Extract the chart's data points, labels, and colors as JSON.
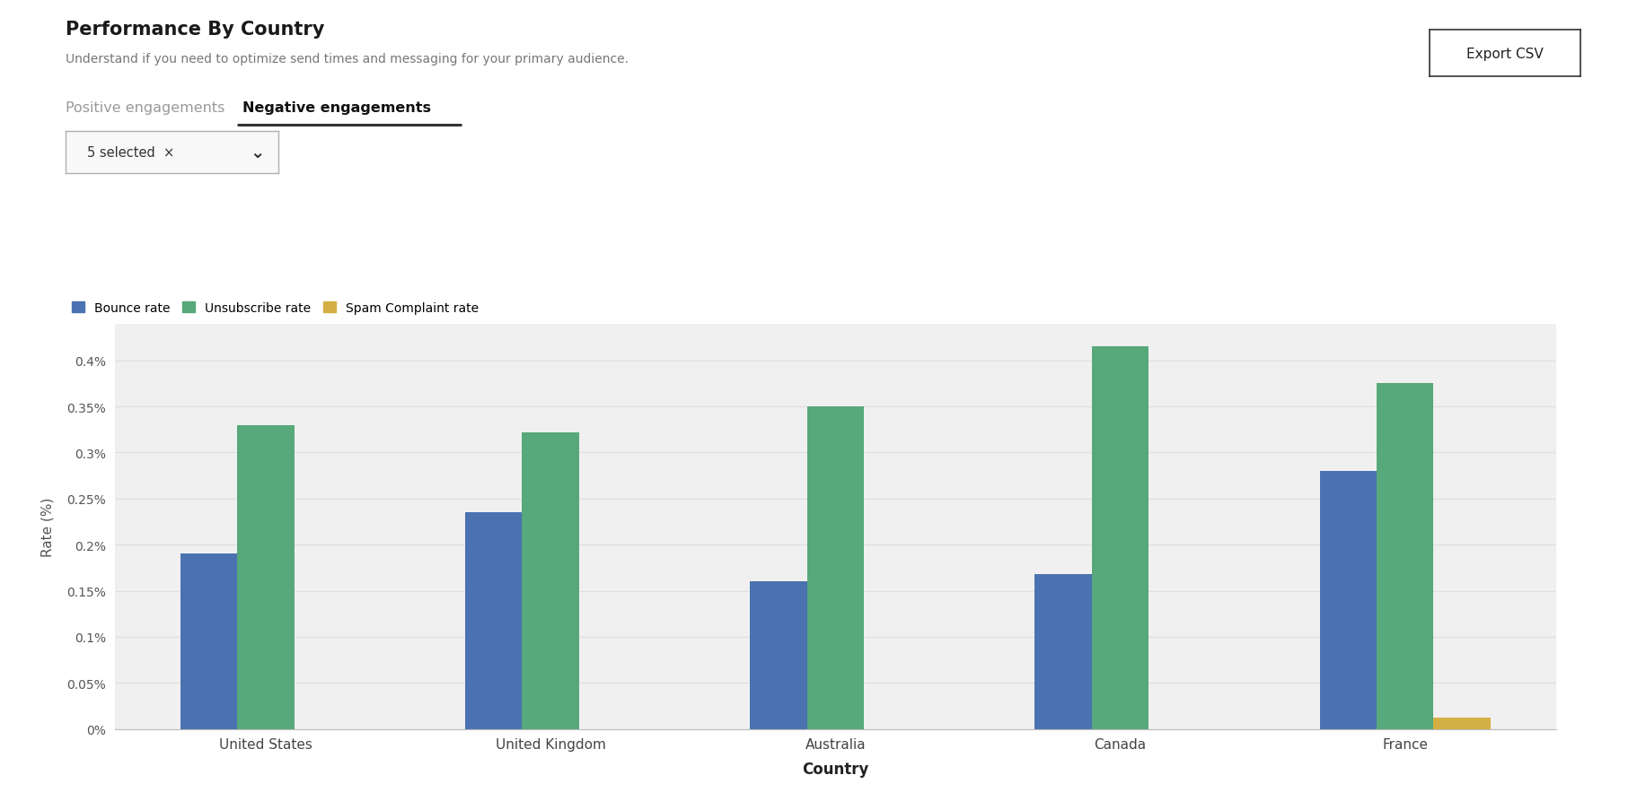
{
  "title": "Performance By Country",
  "subtitle": "Understand if you need to optimize send times and messaging for your primary audience.",
  "tab_inactive": "Positive engagements",
  "tab_active": "Negative engagements",
  "dropdown_label": "5 selected  ×",
  "xlabel": "Country",
  "ylabel": "Rate (%)",
  "categories": [
    "United States",
    "United Kingdom",
    "Australia",
    "Canada",
    "France"
  ],
  "series": [
    {
      "name": "Bounce rate",
      "color": "#4a72b0",
      "values": [
        0.19,
        0.235,
        0.16,
        0.168,
        0.28
      ]
    },
    {
      "name": "Unsubscribe rate",
      "color": "#57a87a",
      "values": [
        0.33,
        0.322,
        0.35,
        0.415,
        0.375
      ]
    },
    {
      "name": "Spam Complaint rate",
      "color": "#d4b044",
      "values": [
        0.0,
        0.0,
        0.0,
        0.0,
        0.012
      ]
    }
  ],
  "ylim": [
    0,
    0.44
  ],
  "yticks": [
    0.0,
    0.05,
    0.1,
    0.15,
    0.2,
    0.25,
    0.3,
    0.35,
    0.4
  ],
  "ytick_labels": [
    "0%",
    "0.05%",
    "0.1%",
    "0.15%",
    "0.2%",
    "0.25%",
    "0.3%",
    "0.35%",
    "0.4%"
  ],
  "background_color": "#ffffff",
  "plot_bg_color": "#f0f0f0",
  "grid_color": "#e0e0e0",
  "export_btn_label": "Export CSV",
  "title_fontsize": 15,
  "subtitle_fontsize": 10,
  "axis_label_fontsize": 11,
  "tick_fontsize": 10,
  "legend_fontsize": 10
}
